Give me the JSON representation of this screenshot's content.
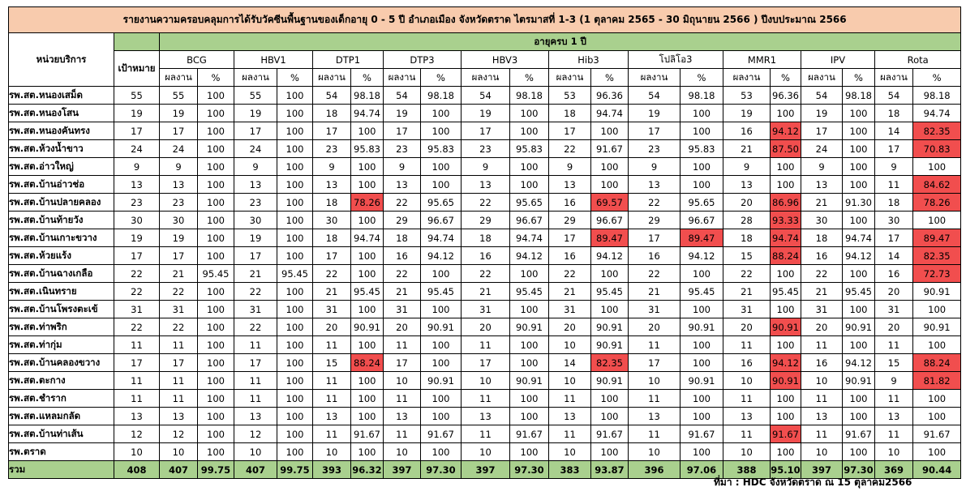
{
  "title": "รายงานความครอบคลุมการได้รับวัคซีนพื้นฐานของเด็กอายุ 0 - 5 ปี อำเภอเมือง จังหวัดตราด ไตรมาสที่ 1-3 (1 ตุลาคม 2565 - 30 มิถุนายน 2566 ) ปีงบประมาณ 2566",
  "unit_header": "หน่วยบริการ",
  "target_header": "เป้าหมาย",
  "age_header": "อายุครบ 1 ปี",
  "sub_headers": {
    "result": "ผลงาน",
    "percent": "%"
  },
  "vaccines": [
    "BCG",
    "HBV1",
    "DTP1",
    "DTP3",
    "HBV3",
    "Hib3",
    "โปลิโอ3",
    "MMR1",
    "IPV",
    "Rota"
  ],
  "colors": {
    "title_bg": "#f8cbad",
    "header_bg": "#a9d08e",
    "low_coverage": "#f14e4e"
  },
  "rows": [
    {
      "name": "รพ.สต.หนองเสม็ด",
      "target": "55",
      "cells": [
        [
          "55",
          "100"
        ],
        [
          "55",
          "100"
        ],
        [
          "54",
          "98.18"
        ],
        [
          "54",
          "98.18"
        ],
        [
          "54",
          "98.18"
        ],
        [
          "53",
          "96.36"
        ],
        [
          "54",
          "98.18"
        ],
        [
          "53",
          "96.36"
        ],
        [
          "54",
          "98.18"
        ],
        [
          "54",
          "98.18"
        ]
      ],
      "red": []
    },
    {
      "name": "รพ.สต.หนองโสน",
      "target": "19",
      "cells": [
        [
          "19",
          "100"
        ],
        [
          "19",
          "100"
        ],
        [
          "18",
          "94.74"
        ],
        [
          "19",
          "100"
        ],
        [
          "19",
          "100"
        ],
        [
          "18",
          "94.74"
        ],
        [
          "19",
          "100"
        ],
        [
          "19",
          "100"
        ],
        [
          "19",
          "100"
        ],
        [
          "18",
          "94.74"
        ]
      ],
      "red": []
    },
    {
      "name": "รพ.สต.หนองคันทรง",
      "target": "17",
      "cells": [
        [
          "17",
          "100"
        ],
        [
          "17",
          "100"
        ],
        [
          "17",
          "100"
        ],
        [
          "17",
          "100"
        ],
        [
          "17",
          "100"
        ],
        [
          "17",
          "100"
        ],
        [
          "17",
          "100"
        ],
        [
          "16",
          "94.12"
        ],
        [
          "17",
          "100"
        ],
        [
          "14",
          "82.35"
        ]
      ],
      "red": [
        7,
        9
      ]
    },
    {
      "name": "รพ.สต.ห้วงน้ำขาว",
      "target": "24",
      "cells": [
        [
          "24",
          "100"
        ],
        [
          "24",
          "100"
        ],
        [
          "23",
          "95.83"
        ],
        [
          "23",
          "95.83"
        ],
        [
          "23",
          "95.83"
        ],
        [
          "22",
          "91.67"
        ],
        [
          "23",
          "95.83"
        ],
        [
          "21",
          "87.50"
        ],
        [
          "24",
          "100"
        ],
        [
          "17",
          "70.83"
        ]
      ],
      "red": [
        7,
        9
      ]
    },
    {
      "name": "รพ.สต.อ่าวใหญ่",
      "target": "9",
      "cells": [
        [
          "9",
          "100"
        ],
        [
          "9",
          "100"
        ],
        [
          "9",
          "100"
        ],
        [
          "9",
          "100"
        ],
        [
          "9",
          "100"
        ],
        [
          "9",
          "100"
        ],
        [
          "9",
          "100"
        ],
        [
          "9",
          "100"
        ],
        [
          "9",
          "100"
        ],
        [
          "9",
          "100"
        ]
      ],
      "red": []
    },
    {
      "name": "รพ.สต.บ้านอ่าวช่อ",
      "target": "13",
      "cells": [
        [
          "13",
          "100"
        ],
        [
          "13",
          "100"
        ],
        [
          "13",
          "100"
        ],
        [
          "13",
          "100"
        ],
        [
          "13",
          "100"
        ],
        [
          "13",
          "100"
        ],
        [
          "13",
          "100"
        ],
        [
          "13",
          "100"
        ],
        [
          "13",
          "100"
        ],
        [
          "11",
          "84.62"
        ]
      ],
      "red": [
        9
      ]
    },
    {
      "name": "รพ.สต.บ้านปลายคลอง",
      "target": "23",
      "cells": [
        [
          "23",
          "100"
        ],
        [
          "23",
          "100"
        ],
        [
          "18",
          "78.26"
        ],
        [
          "22",
          "95.65"
        ],
        [
          "22",
          "95.65"
        ],
        [
          "16",
          "69.57"
        ],
        [
          "22",
          "95.65"
        ],
        [
          "20",
          "86.96"
        ],
        [
          "21",
          "91.30"
        ],
        [
          "18",
          "78.26"
        ]
      ],
      "red": [
        2,
        5,
        7,
        9
      ]
    },
    {
      "name": "รพ.สต.บ้านท้ายวัง",
      "target": "30",
      "cells": [
        [
          "30",
          "100"
        ],
        [
          "30",
          "100"
        ],
        [
          "30",
          "100"
        ],
        [
          "29",
          "96.67"
        ],
        [
          "29",
          "96.67"
        ],
        [
          "29",
          "96.67"
        ],
        [
          "29",
          "96.67"
        ],
        [
          "28",
          "93.33"
        ],
        [
          "30",
          "100"
        ],
        [
          "30",
          "100"
        ]
      ],
      "red": [
        7
      ]
    },
    {
      "name": "รพ.สต.บ้านเกาะขวาง",
      "target": "19",
      "cells": [
        [
          "19",
          "100"
        ],
        [
          "19",
          "100"
        ],
        [
          "18",
          "94.74"
        ],
        [
          "18",
          "94.74"
        ],
        [
          "18",
          "94.74"
        ],
        [
          "17",
          "89.47"
        ],
        [
          "17",
          "89.47"
        ],
        [
          "18",
          "94.74"
        ],
        [
          "18",
          "94.74"
        ],
        [
          "17",
          "89.47"
        ]
      ],
      "red": [
        5,
        6,
        7,
        9
      ]
    },
    {
      "name": "รพ.สต.ห้วยแร้ง",
      "target": "17",
      "cells": [
        [
          "17",
          "100"
        ],
        [
          "17",
          "100"
        ],
        [
          "17",
          "100"
        ],
        [
          "16",
          "94.12"
        ],
        [
          "16",
          "94.12"
        ],
        [
          "16",
          "94.12"
        ],
        [
          "16",
          "94.12"
        ],
        [
          "15",
          "88.24"
        ],
        [
          "16",
          "94.12"
        ],
        [
          "14",
          "82.35"
        ]
      ],
      "red": [
        7,
        9
      ]
    },
    {
      "name": "รพ.สต.บ้านฉางเกลือ",
      "target": "22",
      "cells": [
        [
          "21",
          "95.45"
        ],
        [
          "21",
          "95.45"
        ],
        [
          "22",
          "100"
        ],
        [
          "22",
          "100"
        ],
        [
          "22",
          "100"
        ],
        [
          "22",
          "100"
        ],
        [
          "22",
          "100"
        ],
        [
          "22",
          "100"
        ],
        [
          "22",
          "100"
        ],
        [
          "16",
          "72.73"
        ]
      ],
      "red": [
        9
      ]
    },
    {
      "name": "รพ.สต.เนินทราย",
      "target": "22",
      "cells": [
        [
          "22",
          "100"
        ],
        [
          "22",
          "100"
        ],
        [
          "21",
          "95.45"
        ],
        [
          "21",
          "95.45"
        ],
        [
          "21",
          "95.45"
        ],
        [
          "21",
          "95.45"
        ],
        [
          "21",
          "95.45"
        ],
        [
          "21",
          "95.45"
        ],
        [
          "21",
          "95.45"
        ],
        [
          "20",
          "90.91"
        ]
      ],
      "red": []
    },
    {
      "name": "รพ.สต.บ้านโพรงตะเข้",
      "target": "31",
      "cells": [
        [
          "31",
          "100"
        ],
        [
          "31",
          "100"
        ],
        [
          "31",
          "100"
        ],
        [
          "31",
          "100"
        ],
        [
          "31",
          "100"
        ],
        [
          "31",
          "100"
        ],
        [
          "31",
          "100"
        ],
        [
          "31",
          "100"
        ],
        [
          "31",
          "100"
        ],
        [
          "31",
          "100"
        ]
      ],
      "red": []
    },
    {
      "name": "รพ.สต.ท่าพริก",
      "target": "22",
      "cells": [
        [
          "22",
          "100"
        ],
        [
          "22",
          "100"
        ],
        [
          "20",
          "90.91"
        ],
        [
          "20",
          "90.91"
        ],
        [
          "20",
          "90.91"
        ],
        [
          "20",
          "90.91"
        ],
        [
          "20",
          "90.91"
        ],
        [
          "20",
          "90.91"
        ],
        [
          "20",
          "90.91"
        ],
        [
          "20",
          "90.91"
        ]
      ],
      "red": [
        7
      ]
    },
    {
      "name": "รพ.สต.ท่ากุ่ม",
      "target": "11",
      "cells": [
        [
          "11",
          "100"
        ],
        [
          "11",
          "100"
        ],
        [
          "11",
          "100"
        ],
        [
          "11",
          "100"
        ],
        [
          "11",
          "100"
        ],
        [
          "10",
          "90.91"
        ],
        [
          "11",
          "100"
        ],
        [
          "11",
          "100"
        ],
        [
          "11",
          "100"
        ],
        [
          "11",
          "100"
        ]
      ],
      "red": []
    },
    {
      "name": "รพ.สต.บ้านคลองขวาง",
      "target": "17",
      "cells": [
        [
          "17",
          "100"
        ],
        [
          "17",
          "100"
        ],
        [
          "15",
          "88.24"
        ],
        [
          "17",
          "100"
        ],
        [
          "17",
          "100"
        ],
        [
          "14",
          "82.35"
        ],
        [
          "17",
          "100"
        ],
        [
          "16",
          "94.12"
        ],
        [
          "16",
          "94.12"
        ],
        [
          "15",
          "88.24"
        ]
      ],
      "red": [
        2,
        5,
        7,
        9
      ]
    },
    {
      "name": "รพ.สต.ตะกาง",
      "target": "11",
      "cells": [
        [
          "11",
          "100"
        ],
        [
          "11",
          "100"
        ],
        [
          "11",
          "100"
        ],
        [
          "10",
          "90.91"
        ],
        [
          "10",
          "90.91"
        ],
        [
          "10",
          "90.91"
        ],
        [
          "10",
          "90.91"
        ],
        [
          "10",
          "90.91"
        ],
        [
          "10",
          "90.91"
        ],
        [
          "9",
          "81.82"
        ]
      ],
      "red": [
        7,
        9
      ]
    },
    {
      "name": "รพ.สต.ชำราก",
      "target": "11",
      "cells": [
        [
          "11",
          "100"
        ],
        [
          "11",
          "100"
        ],
        [
          "11",
          "100"
        ],
        [
          "11",
          "100"
        ],
        [
          "11",
          "100"
        ],
        [
          "11",
          "100"
        ],
        [
          "11",
          "100"
        ],
        [
          "11",
          "100"
        ],
        [
          "11",
          "100"
        ],
        [
          "11",
          "100"
        ]
      ],
      "red": []
    },
    {
      "name": "รพ.สต.แหลมกลัด",
      "target": "13",
      "cells": [
        [
          "13",
          "100"
        ],
        [
          "13",
          "100"
        ],
        [
          "13",
          "100"
        ],
        [
          "13",
          "100"
        ],
        [
          "13",
          "100"
        ],
        [
          "13",
          "100"
        ],
        [
          "13",
          "100"
        ],
        [
          "13",
          "100"
        ],
        [
          "13",
          "100"
        ],
        [
          "13",
          "100"
        ]
      ],
      "red": []
    },
    {
      "name": "รพ.สต.บ้านท่าเส้น",
      "target": "12",
      "cells": [
        [
          "12",
          "100"
        ],
        [
          "12",
          "100"
        ],
        [
          "11",
          "91.67"
        ],
        [
          "11",
          "91.67"
        ],
        [
          "11",
          "91.67"
        ],
        [
          "11",
          "91.67"
        ],
        [
          "11",
          "91.67"
        ],
        [
          "11",
          "91.67"
        ],
        [
          "11",
          "91.67"
        ],
        [
          "11",
          "91.67"
        ]
      ],
      "red": [
        7
      ]
    },
    {
      "name": "รพ.ตราด",
      "target": "10",
      "cells": [
        [
          "10",
          "100"
        ],
        [
          "10",
          "100"
        ],
        [
          "10",
          "100"
        ],
        [
          "10",
          "100"
        ],
        [
          "10",
          "100"
        ],
        [
          "10",
          "100"
        ],
        [
          "10",
          "100"
        ],
        [
          "10",
          "100"
        ],
        [
          "10",
          "100"
        ],
        [
          "10",
          "100"
        ]
      ],
      "red": []
    }
  ],
  "total": {
    "name": "รวม",
    "target": "408",
    "cells": [
      [
        "407",
        "99.75"
      ],
      [
        "407",
        "99.75"
      ],
      [
        "393",
        "96.32"
      ],
      [
        "397",
        "97.30"
      ],
      [
        "397",
        "97.30"
      ],
      [
        "383",
        "93.87"
      ],
      [
        "396",
        "97.06"
      ],
      [
        "388",
        "95.10"
      ],
      [
        "397",
        "97.30"
      ],
      [
        "369",
        "90.44"
      ]
    ]
  },
  "source": "ที่มา : HDC จังหวัดตราด ณ 15 ตุลาคม2566"
}
